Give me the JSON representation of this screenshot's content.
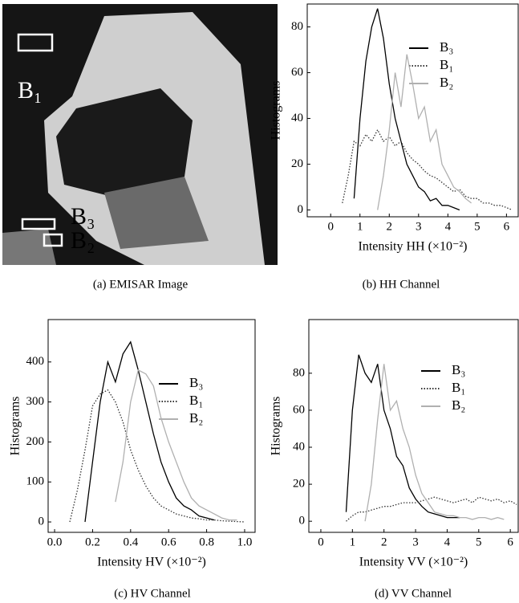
{
  "image_panel": {
    "labels": [
      "B₁",
      "B₃",
      "B₂"
    ],
    "caption": "(a) EMISAR Image"
  },
  "chart_data": [
    {
      "type": "line",
      "caption": "(b) HH Channel",
      "y_label": "Histograms",
      "x_label": "Intensity HH (×10⁻²)",
      "x": [
        0.4,
        0.6,
        0.8,
        1.0,
        1.2,
        1.4,
        1.6,
        1.8,
        2.0,
        2.2,
        2.4,
        2.6,
        2.8,
        3.0,
        3.2,
        3.4,
        3.6,
        3.8,
        4.0,
        4.2,
        4.4,
        4.6,
        4.8,
        5.0,
        5.2,
        5.4,
        5.6,
        5.8,
        6.0,
        6.2
      ],
      "series": [
        {
          "name": "B₃",
          "color": "#000000",
          "line_style": "solid",
          "values": [
            null,
            null,
            5,
            40,
            65,
            80,
            88,
            75,
            55,
            40,
            30,
            20,
            15,
            10,
            8,
            4,
            5,
            2,
            2,
            1,
            0,
            null,
            null,
            null,
            null,
            null,
            null,
            null,
            null,
            null
          ]
        },
        {
          "name": "B₁",
          "color": "#333333",
          "line_style": "dotted",
          "values": [
            3,
            15,
            30,
            28,
            33,
            30,
            35,
            30,
            32,
            28,
            30,
            25,
            22,
            20,
            17,
            15,
            14,
            12,
            10,
            8,
            9,
            6,
            5,
            5,
            3,
            3,
            2,
            2,
            1,
            0
          ]
        },
        {
          "name": "B₂",
          "color": "#b0b0b0",
          "line_style": "solid",
          "values": [
            null,
            null,
            null,
            null,
            null,
            null,
            0,
            15,
            35,
            60,
            45,
            68,
            55,
            40,
            45,
            30,
            35,
            20,
            15,
            10,
            8,
            5,
            3,
            null,
            null,
            null,
            null,
            null,
            null,
            null
          ]
        }
      ],
      "xlim": [
        -0.8,
        6.4
      ],
      "ylim": [
        -3,
        90
      ],
      "xticks": [
        0,
        1,
        2,
        3,
        4,
        5,
        6
      ],
      "yticks": [
        0,
        20,
        40,
        60,
        80
      ],
      "legend": "upper right"
    },
    {
      "type": "line",
      "caption": "(c) HV Channel",
      "y_label": "Histograms",
      "x_label": "Intensity HV (×10⁻²)",
      "x": [
        0.08,
        0.12,
        0.16,
        0.2,
        0.24,
        0.28,
        0.32,
        0.36,
        0.4,
        0.44,
        0.48,
        0.52,
        0.56,
        0.6,
        0.64,
        0.68,
        0.72,
        0.76,
        0.8,
        0.84,
        0.88,
        0.92,
        0.96,
        1.0
      ],
      "series": [
        {
          "name": "B₃",
          "color": "#000000",
          "line_style": "solid",
          "values": [
            null,
            null,
            0,
            150,
            300,
            400,
            350,
            420,
            450,
            380,
            300,
            220,
            150,
            100,
            60,
            40,
            30,
            15,
            10,
            5,
            null,
            null,
            null,
            null
          ]
        },
        {
          "name": "B₁",
          "color": "#333333",
          "line_style": "dotted",
          "values": [
            0,
            80,
            180,
            290,
            320,
            330,
            300,
            250,
            180,
            130,
            90,
            60,
            40,
            30,
            20,
            15,
            10,
            8,
            5,
            5,
            3,
            2,
            1,
            0
          ]
        },
        {
          "name": "B₂",
          "color": "#b0b0b0",
          "line_style": "solid",
          "values": [
            null,
            null,
            null,
            null,
            null,
            null,
            50,
            150,
            300,
            380,
            370,
            340,
            260,
            200,
            150,
            100,
            60,
            40,
            30,
            20,
            10,
            5,
            5,
            null
          ]
        }
      ],
      "xlim": [
        -0.034,
        1.055
      ],
      "ylim": [
        -26,
        506
      ],
      "xticks": [
        {
          "value": 0,
          "label": "0.0"
        },
        0.2,
        0.4,
        0.6,
        0.8,
        {
          "value": 1,
          "label": "1.0"
        }
      ],
      "yticks": [
        0,
        100,
        200,
        300,
        400
      ],
      "legend": "upper right"
    },
    {
      "type": "line",
      "caption": "(d) VV Channel",
      "y_label": "Histograms",
      "x_label": "Intensity VV (×10⁻²)",
      "x": [
        0.6,
        0.8,
        1.0,
        1.2,
        1.4,
        1.6,
        1.8,
        2.0,
        2.2,
        2.4,
        2.6,
        2.8,
        3.0,
        3.2,
        3.4,
        3.6,
        3.8,
        4.0,
        4.2,
        4.4,
        4.6,
        4.8,
        5.0,
        5.2,
        5.4,
        5.6,
        5.8,
        6.0,
        6.2
      ],
      "series": [
        {
          "name": "B₃",
          "color": "#000000",
          "line_style": "solid",
          "values": [
            null,
            5,
            60,
            90,
            80,
            75,
            85,
            60,
            50,
            35,
            30,
            18,
            12,
            8,
            5,
            4,
            3,
            2,
            2,
            2,
            null,
            null,
            null,
            null,
            null,
            null,
            null,
            null,
            null
          ]
        },
        {
          "name": "B₁",
          "color": "#333333",
          "line_style": "dotted",
          "values": [
            null,
            0,
            3,
            5,
            5,
            6,
            7,
            8,
            8,
            9,
            10,
            10,
            10,
            11,
            12,
            13,
            12,
            11,
            10,
            11,
            12,
            10,
            13,
            12,
            11,
            12,
            10,
            11,
            9
          ]
        },
        {
          "name": "B₂",
          "color": "#b0b0b0",
          "line_style": "solid",
          "values": [
            null,
            null,
            null,
            null,
            0,
            20,
            55,
            85,
            60,
            65,
            50,
            40,
            25,
            15,
            10,
            5,
            4,
            3,
            3,
            2,
            2,
            1,
            2,
            2,
            1,
            2,
            1,
            null,
            null
          ]
        }
      ],
      "xlim": [
        -0.38,
        6.25
      ],
      "ylim": [
        -6,
        109
      ],
      "xticks": [
        0,
        1,
        2,
        3,
        4,
        5,
        6
      ],
      "yticks": [
        0,
        20,
        40,
        60,
        80
      ],
      "legend": "upper right"
    }
  ]
}
